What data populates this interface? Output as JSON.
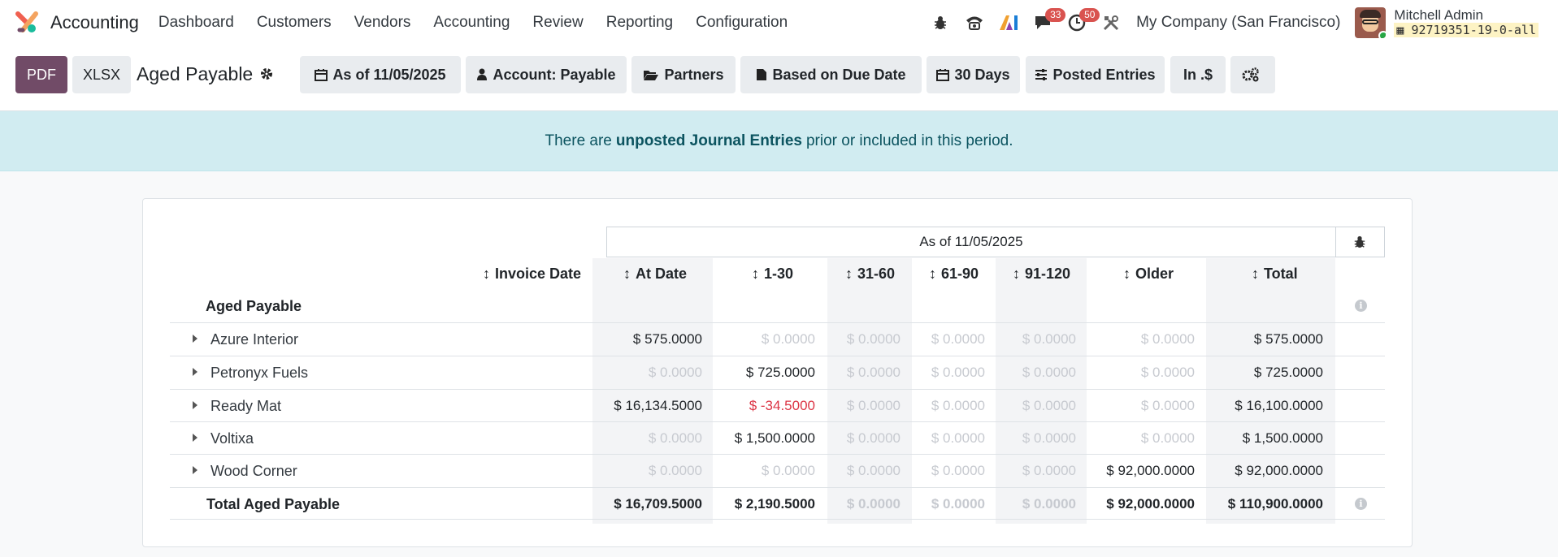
{
  "navbar": {
    "app_name": "Accounting",
    "menu": [
      "Dashboard",
      "Customers",
      "Vendors",
      "Accounting",
      "Review",
      "Reporting",
      "Configuration"
    ],
    "messages_count": "33",
    "activities_count": "50",
    "company": "My Company (San Francisco)",
    "user_name": "Mitchell Admin",
    "db_name": "92719351-19-0-all"
  },
  "control_panel": {
    "pdf_label": "PDF",
    "xlsx_label": "XLSX",
    "report_title": "Aged Payable",
    "filters": {
      "date": "As of 11/05/2025",
      "account": "Account: Payable",
      "partners": "Partners",
      "based_on": "Based on Due Date",
      "period": "30 Days",
      "entries": "Posted Entries",
      "currency": "In .$"
    }
  },
  "alert": {
    "prefix": "There are",
    "bold": "unposted Journal Entries",
    "suffix": "prior or included in this period."
  },
  "report": {
    "header_period": "As of 11/05/2025",
    "columns": {
      "invoice_date": "Invoice Date",
      "at_date": "At Date",
      "d1_30": "1-30",
      "d31_60": "31-60",
      "d61_90": "61-90",
      "d91_120": "91-120",
      "older": "Older",
      "total": "Total"
    },
    "section_title": "Aged Payable",
    "rows": [
      {
        "name": "Azure Interior",
        "at_date": "$ 575.0000",
        "d1_30": "$ 0.0000",
        "d31_60": "$ 0.0000",
        "d61_90": "$ 0.0000",
        "d91_120": "$ 0.0000",
        "older": "$ 0.0000",
        "total": "$ 575.0000"
      },
      {
        "name": "Petronyx Fuels",
        "at_date": "$ 0.0000",
        "d1_30": "$ 725.0000",
        "d31_60": "$ 0.0000",
        "d61_90": "$ 0.0000",
        "d91_120": "$ 0.0000",
        "older": "$ 0.0000",
        "total": "$ 725.0000"
      },
      {
        "name": "Ready Mat",
        "at_date": "$ 16,134.5000",
        "d1_30": "$ -34.5000",
        "d31_60": "$ 0.0000",
        "d61_90": "$ 0.0000",
        "d91_120": "$ 0.0000",
        "older": "$ 0.0000",
        "total": "$ 16,100.0000"
      },
      {
        "name": "Voltixa",
        "at_date": "$ 0.0000",
        "d1_30": "$ 1,500.0000",
        "d31_60": "$ 0.0000",
        "d61_90": "$ 0.0000",
        "d91_120": "$ 0.0000",
        "older": "$ 0.0000",
        "total": "$ 1,500.0000"
      },
      {
        "name": "Wood Corner",
        "at_date": "$ 0.0000",
        "d1_30": "$ 0.0000",
        "d31_60": "$ 0.0000",
        "d61_90": "$ 0.0000",
        "d91_120": "$ 0.0000",
        "older": "$ 92,000.0000",
        "total": "$ 92,000.0000"
      }
    ],
    "total": {
      "name": "Total Aged Payable",
      "at_date": "$ 16,709.5000",
      "d1_30": "$ 2,190.5000",
      "d31_60": "$ 0.0000",
      "d61_90": "$ 0.0000",
      "d91_120": "$ 0.0000",
      "older": "$ 92,000.0000",
      "total": "$ 110,900.0000"
    }
  },
  "colors": {
    "brand": "#714b67",
    "alert_bg": "#d1ecf1",
    "negative": "#dc3545",
    "badge": "#d9534f"
  }
}
